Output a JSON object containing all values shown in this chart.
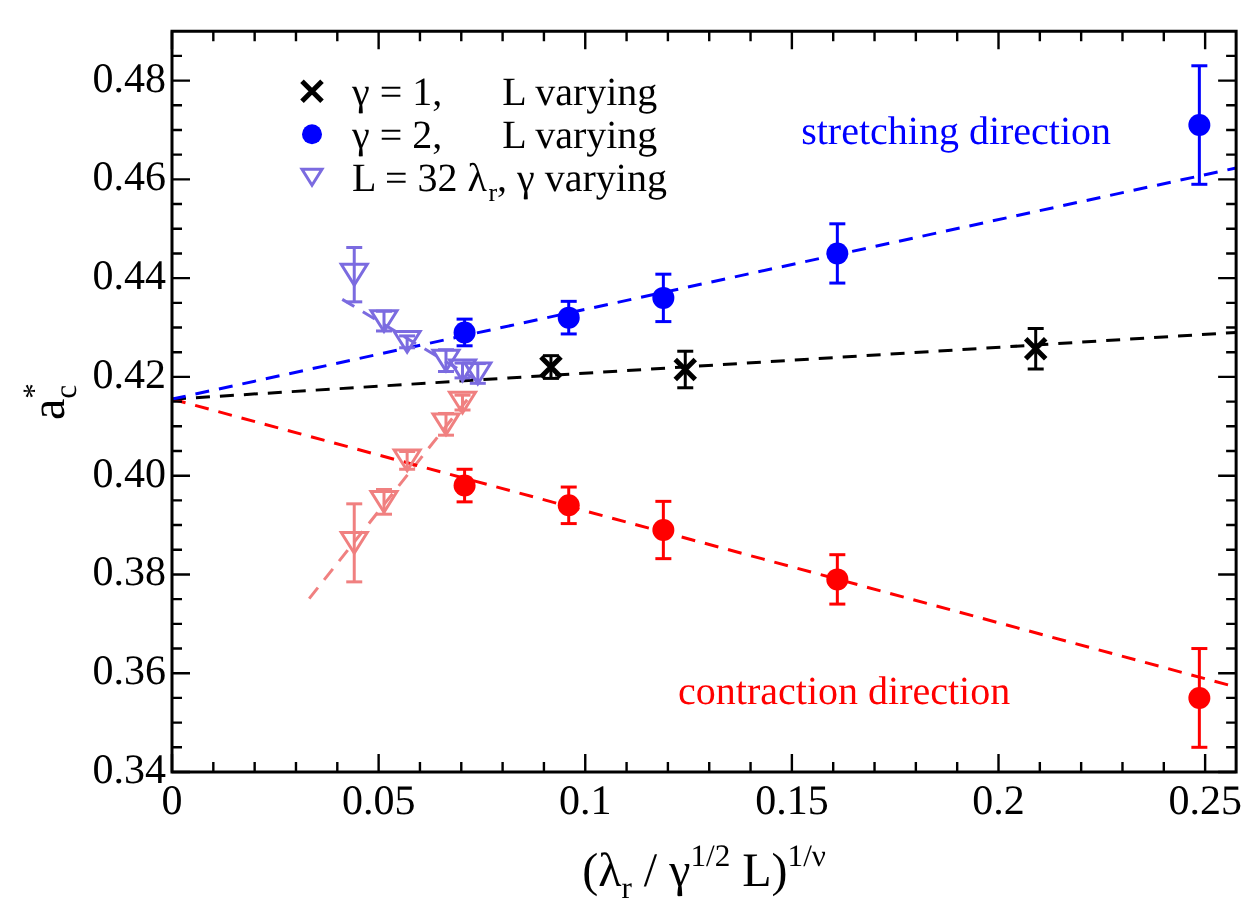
{
  "chart_data": {
    "type": "scatter",
    "xlabel": "(λ$_{r}$ / γ$^{1/2}$ L)$^{1/ν}$",
    "ylabel": "a$_{c}$$^{*}$",
    "xlim": [
      0,
      0.2575
    ],
    "xticks": [
      0,
      {
        "value": 0.01,
        "label": null
      },
      {
        "value": 0.02,
        "label": null
      },
      {
        "value": 0.03,
        "label": null
      },
      {
        "value": 0.04,
        "label": null
      },
      0.05,
      {
        "value": 0.06,
        "label": null
      },
      {
        "value": 0.07,
        "label": null
      },
      {
        "value": 0.08,
        "label": null
      },
      {
        "value": 0.09,
        "label": null
      },
      0.1,
      {
        "value": 0.11,
        "label": null
      },
      {
        "value": 0.12,
        "label": null
      },
      {
        "value": 0.13,
        "label": null
      },
      {
        "value": 0.14,
        "label": null
      },
      0.15,
      {
        "value": 0.16,
        "label": null
      },
      {
        "value": 0.17,
        "label": null
      },
      {
        "value": 0.18,
        "label": null
      },
      {
        "value": 0.19,
        "label": null
      },
      0.2,
      {
        "value": 0.21,
        "label": null
      },
      {
        "value": 0.22,
        "label": null
      },
      {
        "value": 0.23,
        "label": null
      },
      {
        "value": 0.24,
        "label": null
      },
      0.25
    ],
    "ylim": [
      0.34,
      0.49
    ],
    "yticks": [
      0.34,
      {
        "value": 0.345,
        "label": null
      },
      {
        "value": 0.35,
        "label": null
      },
      {
        "value": 0.355,
        "label": null
      },
      0.36,
      {
        "value": 0.365,
        "label": null
      },
      {
        "value": 0.37,
        "label": null
      },
      {
        "value": 0.375,
        "label": null
      },
      0.38,
      {
        "value": 0.385,
        "label": null
      },
      {
        "value": 0.39,
        "label": null
      },
      {
        "value": 0.395,
        "label": null
      },
      {
        "value": 0.4,
        "label": "0.40"
      },
      {
        "value": 0.405,
        "label": null
      },
      {
        "value": 0.41,
        "label": null
      },
      {
        "value": 0.415,
        "label": null
      },
      0.42,
      {
        "value": 0.425,
        "label": null
      },
      {
        "value": 0.43,
        "label": null
      },
      {
        "value": 0.435,
        "label": null
      },
      0.44,
      {
        "value": 0.445,
        "label": null
      },
      {
        "value": 0.45,
        "label": null
      },
      {
        "value": 0.455,
        "label": null
      },
      0.46,
      {
        "value": 0.465,
        "label": null
      },
      {
        "value": 0.47,
        "label": null
      },
      {
        "value": 0.475,
        "label": null
      },
      0.48,
      {
        "value": 0.485,
        "label": null
      }
    ],
    "legend": "top left",
    "series": [
      {
        "type": "line",
        "color": "#0000ff",
        "x": [
          0,
          0.2575
        ],
        "values": [
          0.4155,
          0.4623
        ],
        "line_style": "dashed",
        "marker": "none"
      },
      {
        "type": "line",
        "color": "#000000",
        "x": [
          0,
          0.2575
        ],
        "values": [
          0.4155,
          0.429
        ],
        "line_style": "dashed",
        "marker": "none"
      },
      {
        "type": "line",
        "color": "#ff0000",
        "x": [
          0,
          0.2575
        ],
        "values": [
          0.4155,
          0.3572
        ],
        "line_style": "dashed",
        "marker": "none"
      },
      {
        "type": "line",
        "color": "#7b6be0",
        "x": [
          0.0412,
          0.0756
        ],
        "values": [
          0.4357,
          0.4184
        ],
        "line_style": "dashed",
        "marker": "none"
      },
      {
        "type": "line",
        "color": "#f08080",
        "x": [
          0.0332,
          0.0724
        ],
        "values": [
          0.3751,
          0.4164
        ],
        "line_style": "dashed",
        "marker": "none"
      },
      {
        "type": "scatter",
        "name": "γ = 1,      L varying",
        "color": "#000000",
        "marker": "cross",
        "x": [
          0.0917,
          0.1242,
          0.209
        ],
        "values": [
          0.422,
          0.4215,
          0.4257
        ],
        "errors": [
          0.0023,
          0.0037,
          0.0041
        ]
      },
      {
        "type": "scatter",
        "name": "γ = 2,      L varying",
        "color": "#0000ff",
        "marker": "circle",
        "x": [
          0.0708,
          0.096,
          0.1189,
          0.161,
          0.2486
        ],
        "values": [
          0.429,
          0.432,
          0.436,
          0.445,
          0.471
        ],
        "errors": [
          0.0027,
          0.0033,
          0.0048,
          0.006,
          0.012
        ]
      },
      {
        "type": "scatter",
        "color": "#ff0000",
        "marker": "circle",
        "x": [
          0.0708,
          0.096,
          0.1189,
          0.161,
          0.2486
        ],
        "values": [
          0.398,
          0.394,
          0.389,
          0.379,
          0.355
        ],
        "errors": [
          0.0033,
          0.0037,
          0.0058,
          0.005,
          0.01
        ]
      },
      {
        "type": "scatter",
        "name": "L = 32 λ$_{r}$, γ varying",
        "color": "#7b6be0",
        "marker": "triangle",
        "x": [
          0.0441,
          0.0513,
          0.0569,
          0.0663,
          0.0703,
          0.074
        ],
        "values": [
          0.4407,
          0.4313,
          0.4271,
          0.4233,
          0.4213,
          0.4207
        ],
        "errors": [
          0.0055,
          0.002,
          0.0012,
          0.0022,
          0.0015,
          0.002
        ]
      },
      {
        "type": "scatter",
        "color": "#f08080",
        "marker": "triangle",
        "x": [
          0.0441,
          0.0513,
          0.0569,
          0.0663,
          0.0703
        ],
        "values": [
          0.3864,
          0.3947,
          0.4031,
          0.4104,
          0.4148
        ],
        "errors": [
          0.0079,
          0.0025,
          0.0018,
          0.0022,
          0.0015
        ]
      }
    ],
    "annotations": [
      "stretching direction",
      "contraction direction"
    ]
  }
}
